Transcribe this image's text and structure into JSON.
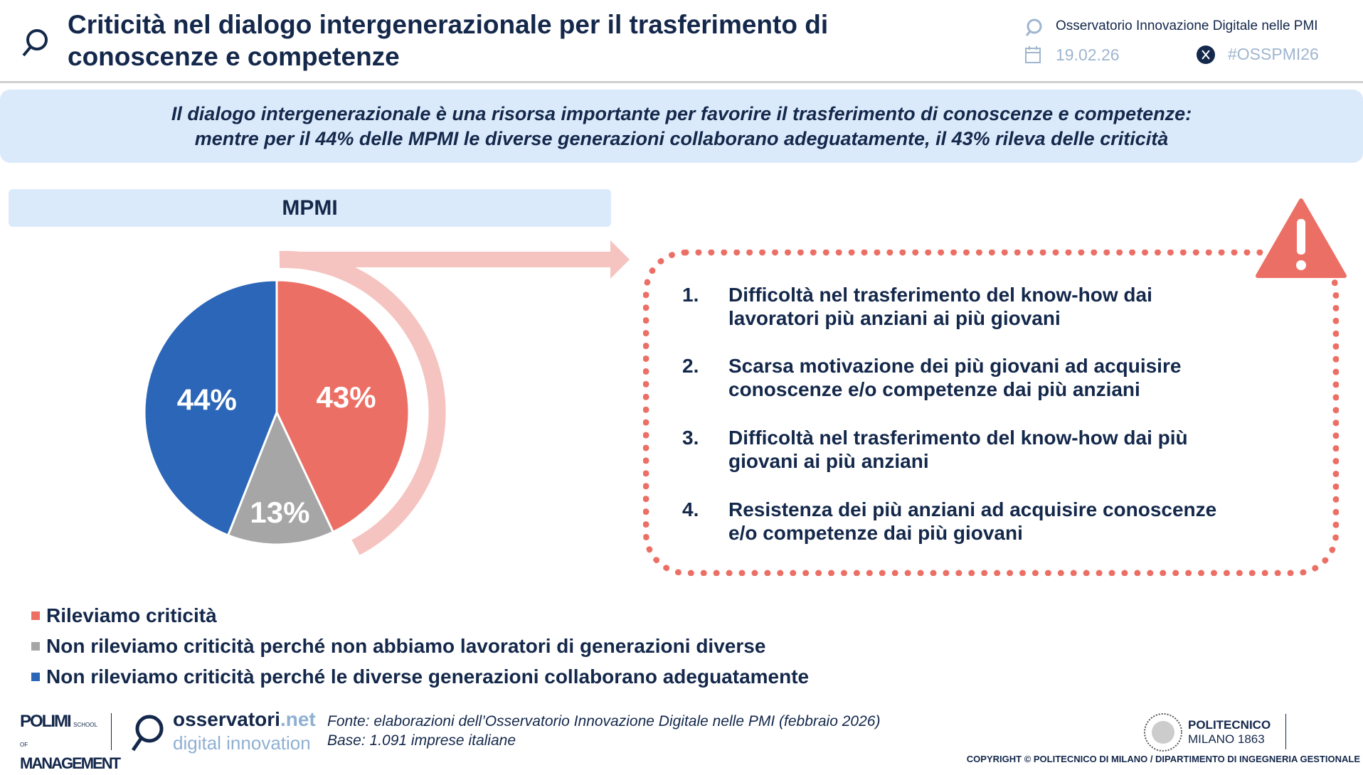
{
  "header": {
    "title": "Criticità nel dialogo intergenerazionale per il trasferimento di conoscenze e competenze",
    "observatory": "Osservatorio Innovazione Digitale nelle PMI",
    "date": "19.02.26",
    "hashtag": "#OSSPMI26"
  },
  "banner": {
    "line1": "Il dialogo intergenerazionale è una risorsa importante per favorire il trasferimento di conoscenze e competenze:",
    "line2": "mentre per il 44% delle MPMI le diverse generazioni collaborano adeguatamente, il 43% rileva delle criticità"
  },
  "section_title": "MPMI",
  "chart_data": {
    "type": "pie",
    "title": "MPMI",
    "slices": [
      {
        "label": "Rileviamo criticità",
        "value": 43,
        "display": "43%",
        "color": "#ec6f65"
      },
      {
        "label": "Non rileviamo criticità perché non abbiamo lavoratori di generazioni diverse",
        "value": 13,
        "display": "13%",
        "color": "#a6a6a6"
      },
      {
        "label": "Non rileviamo criticità perché le diverse generazioni collaborano adeguatamente",
        "value": 44,
        "display": "44%",
        "color": "#2b66b8"
      }
    ]
  },
  "criticalities": [
    {
      "n": "1.",
      "l1": "Difficoltà nel trasferimento del know-how dai",
      "l2": "lavoratori più anziani ai più giovani"
    },
    {
      "n": "2.",
      "l1": "Scarsa motivazione dei più giovani ad acquisire",
      "l2": "conoscenze e/o competenze dai più anziani"
    },
    {
      "n": "3.",
      "l1": "Difficoltà nel trasferimento del know-how dai più",
      "l2": "giovani ai più anziani"
    },
    {
      "n": "4.",
      "l1": "Resistenza dei più anziani ad acquisire conoscenze",
      "l2": "e/o competenze dai più giovani"
    }
  ],
  "footer": {
    "source": "Fonte: elaborazioni dell’Osservatorio Innovazione Digitale nelle PMI (febbraio 2026)",
    "base": "Base: 1.091 imprese italiane",
    "logo1a": "POLIMI",
    "logo1b": "SCHOOL OF",
    "logo1c": "MANAGEMENT",
    "logo2a": "osservatori",
    "logo2b": ".net",
    "logo2c": "digital innovation",
    "logo3a": "POLITECNICO",
    "logo3b": "MILANO 1863",
    "copyright": "COPYRIGHT © POLITECNICO DI MILANO / DIPARTIMENTO DI INGEGNERIA GESTIONALE"
  }
}
